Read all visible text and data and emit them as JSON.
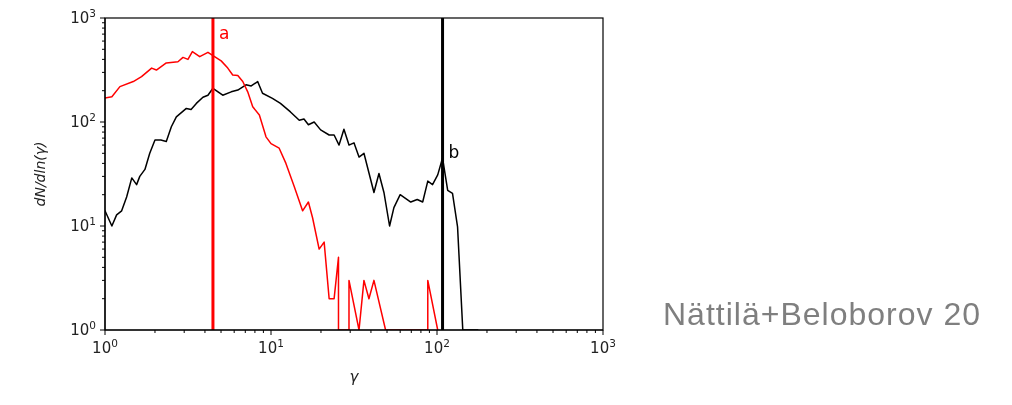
{
  "chart_data": {
    "type": "line",
    "xlabel": "γ",
    "ylabel": "dN/dln(γ)",
    "log": "xy",
    "marker": "none",
    "line_style": "solid",
    "xlim": [
      1,
      1000
    ],
    "ylim": [
      1,
      1000
    ],
    "xticks": [
      {
        "value": 1,
        "label": "10$^{0}$"
      },
      {
        "value": 2,
        "label": null
      },
      {
        "value": 3,
        "label": null
      },
      {
        "value": 4,
        "label": null
      },
      {
        "value": 5,
        "label": null
      },
      {
        "value": 6,
        "label": null
      },
      {
        "value": 7,
        "label": null
      },
      {
        "value": 8,
        "label": null
      },
      {
        "value": 9,
        "label": null
      },
      {
        "value": 10,
        "label": "10$^{1}$"
      },
      {
        "value": 20,
        "label": null
      },
      {
        "value": 30,
        "label": null
      },
      {
        "value": 40,
        "label": null
      },
      {
        "value": 50,
        "label": null
      },
      {
        "value": 60,
        "label": null
      },
      {
        "value": 70,
        "label": null
      },
      {
        "value": 80,
        "label": null
      },
      {
        "value": 90,
        "label": null
      },
      {
        "value": 100,
        "label": "10$^{2}$"
      },
      {
        "value": 200,
        "label": null
      },
      {
        "value": 300,
        "label": null
      },
      {
        "value": 400,
        "label": null
      },
      {
        "value": 500,
        "label": null
      },
      {
        "value": 600,
        "label": null
      },
      {
        "value": 700,
        "label": null
      },
      {
        "value": 800,
        "label": null
      },
      {
        "value": 900,
        "label": null
      },
      {
        "value": 1000,
        "label": "10$^{3}$"
      }
    ],
    "yticks": [
      {
        "value": 1,
        "label": "10$^{0}$"
      },
      {
        "value": 2,
        "label": null
      },
      {
        "value": 3,
        "label": null
      },
      {
        "value": 4,
        "label": null
      },
      {
        "value": 5,
        "label": null
      },
      {
        "value": 6,
        "label": null
      },
      {
        "value": 7,
        "label": null
      },
      {
        "value": 8,
        "label": null
      },
      {
        "value": 9,
        "label": null
      },
      {
        "value": 10,
        "label": "10$^{1}$"
      },
      {
        "value": 20,
        "label": null
      },
      {
        "value": 30,
        "label": null
      },
      {
        "value": 40,
        "label": null
      },
      {
        "value": 50,
        "label": null
      },
      {
        "value": 60,
        "label": null
      },
      {
        "value": 70,
        "label": null
      },
      {
        "value": 80,
        "label": null
      },
      {
        "value": 90,
        "label": null
      },
      {
        "value": 100,
        "label": "10$^{2}$"
      },
      {
        "value": 200,
        "label": null
      },
      {
        "value": 300,
        "label": null
      },
      {
        "value": 400,
        "label": null
      },
      {
        "value": 500,
        "label": null
      },
      {
        "value": 600,
        "label": null
      },
      {
        "value": 700,
        "label": null
      },
      {
        "value": 800,
        "label": null
      },
      {
        "value": 900,
        "label": null
      },
      {
        "value": 1000,
        "label": "10$^{3}$"
      }
    ],
    "series": [
      {
        "color": "#000000",
        "x": [
          1.0,
          1.1,
          1.175,
          1.26,
          1.35,
          1.45,
          1.55,
          1.62,
          1.74,
          1.86,
          2.0,
          2.17,
          2.34,
          2.51,
          2.69,
          3.09,
          3.3,
          3.55,
          3.89,
          4.17,
          4.47,
          5.12,
          5.76,
          6.31,
          7.07,
          7.6,
          8.31,
          8.89,
          10.2,
          11.4,
          13.1,
          14.8,
          15.8,
          16.8,
          18.2,
          19.9,
          22.4,
          24.0,
          25.7,
          27.5,
          29.5,
          31.6,
          33.9,
          36.3,
          41.7,
          44.7,
          47.9,
          51.8,
          55.0,
          60,
          69.5,
          76,
          82,
          88,
          94,
          101,
          108,
          116,
          124,
          133,
          143,
          176
        ],
        "values": [
          14,
          10,
          12.8,
          14,
          19,
          29,
          25,
          30,
          35,
          50,
          67,
          67,
          65,
          90,
          112,
          135,
          132,
          151,
          173,
          181,
          211,
          181,
          195,
          203,
          228,
          222,
          245,
          189,
          169,
          151,
          125,
          104,
          107,
          94,
          100,
          84,
          75,
          75,
          60,
          85,
          60,
          63,
          46,
          50,
          21,
          32,
          21,
          10,
          15,
          20,
          17,
          18,
          17,
          27,
          25,
          31,
          45,
          22,
          20.6,
          9.8,
          1,
          1
        ]
      },
      {
        "color": "#ff0000",
        "x": [
          1.0,
          1.1,
          1.23,
          1.48,
          1.66,
          1.91,
          2.04,
          2.34,
          2.75,
          2.95,
          3.16,
          3.36,
          3.72,
          4.17,
          4.57,
          5.01,
          5.49,
          5.88,
          6.31,
          6.76,
          7.24,
          7.76,
          8.51,
          9.33,
          10.0,
          11.2,
          12.3,
          13.8,
          15.5,
          16.8,
          17.8,
          19.5,
          20.9,
          22.4,
          24.0,
          25.5,
          25.5,
          29.5,
          29.5,
          33.9,
          36.3,
          38.9,
          41.7,
          49.0,
          88,
          88,
          101
        ],
        "values": [
          170,
          175,
          219,
          245,
          273,
          330,
          316,
          370,
          380,
          418,
          400,
          475,
          425,
          468,
          425,
          387,
          330,
          283,
          280,
          245,
          195,
          140,
          117,
          72,
          62,
          56,
          40,
          24,
          14,
          17,
          12,
          6,
          7,
          2,
          2,
          5,
          1,
          1,
          3,
          1,
          3,
          2,
          3,
          1,
          1,
          3,
          1
        ]
      }
    ],
    "ref_lines": [
      {
        "axis": "x",
        "value": 4.47,
        "label": "a",
        "color": "#ff0000"
      },
      {
        "axis": "x",
        "value": 108,
        "label": "b",
        "color": "#000000"
      }
    ],
    "annotations": [
      "Nättilä+Beloborov 20"
    ]
  }
}
